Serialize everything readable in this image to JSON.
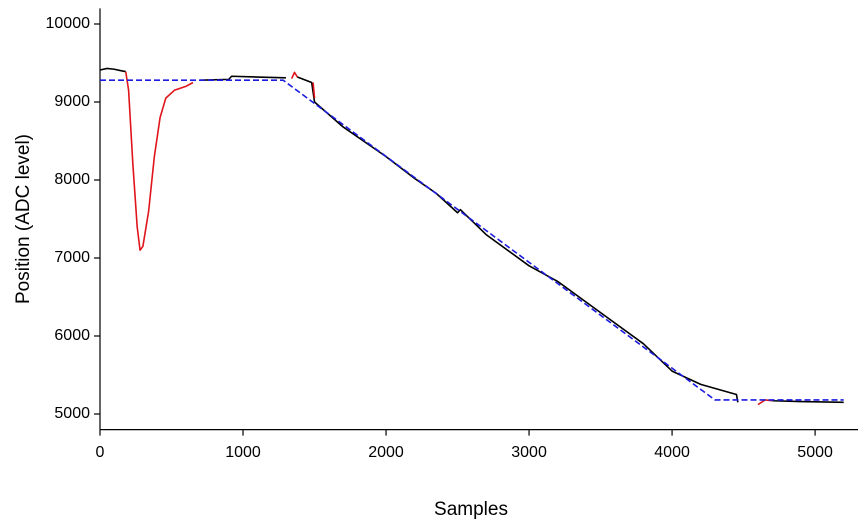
{
  "chart_data": {
    "type": "line",
    "x_label": "Samples",
    "y_label": "Position (ADC level)",
    "xlim": [
      0,
      5300
    ],
    "ylim": [
      4800,
      10200
    ],
    "xticks": [
      0,
      1000,
      2000,
      3000,
      4000,
      5000
    ],
    "yticks": [
      5000,
      6000,
      7000,
      8000,
      9000,
      10000
    ],
    "grid": false,
    "series": [
      {
        "color": "#000000",
        "line_style": "solid",
        "x": [
          0,
          50,
          100,
          150,
          180,
          650,
          700,
          900,
          920,
          1100,
          1300,
          1340,
          1380,
          1480,
          1500,
          1700,
          2000,
          2200,
          2350,
          2500,
          2520,
          2700,
          3000,
          3200,
          3500,
          3800,
          4000,
          4200,
          4450,
          4460,
          4600,
          4700,
          4900,
          5200
        ],
        "values": [
          9410,
          9430,
          9420,
          9400,
          9390,
          null,
          9280,
          9290,
          9330,
          9320,
          9310,
          null,
          9320,
          9250,
          9000,
          8680,
          8300,
          8020,
          7830,
          7580,
          7620,
          7300,
          6900,
          6700,
          6300,
          5900,
          5550,
          5380,
          5250,
          5150,
          null,
          5170,
          5160,
          5150
        ]
      },
      {
        "color": "#e0141b",
        "line_style": "solid",
        "x": [
          180,
          200,
          230,
          260,
          280,
          300,
          340,
          380,
          420,
          460,
          520,
          600,
          650,
          700,
          1340,
          1360,
          1380,
          1400,
          1490,
          1500,
          1600,
          4600,
          4650,
          4700
        ],
        "values": [
          9390,
          9150,
          8200,
          7400,
          7100,
          7150,
          7600,
          8300,
          8800,
          9050,
          9150,
          9200,
          9250,
          null,
          9300,
          9380,
          9320,
          null,
          9250,
          9050,
          null,
          5120,
          5180,
          5170
        ]
      },
      {
        "color": "#1c1ce0",
        "line_style": "dashed",
        "x": [
          0,
          1280,
          4300,
          5200
        ],
        "values": [
          9280,
          9280,
          5180,
          5180
        ]
      }
    ]
  }
}
